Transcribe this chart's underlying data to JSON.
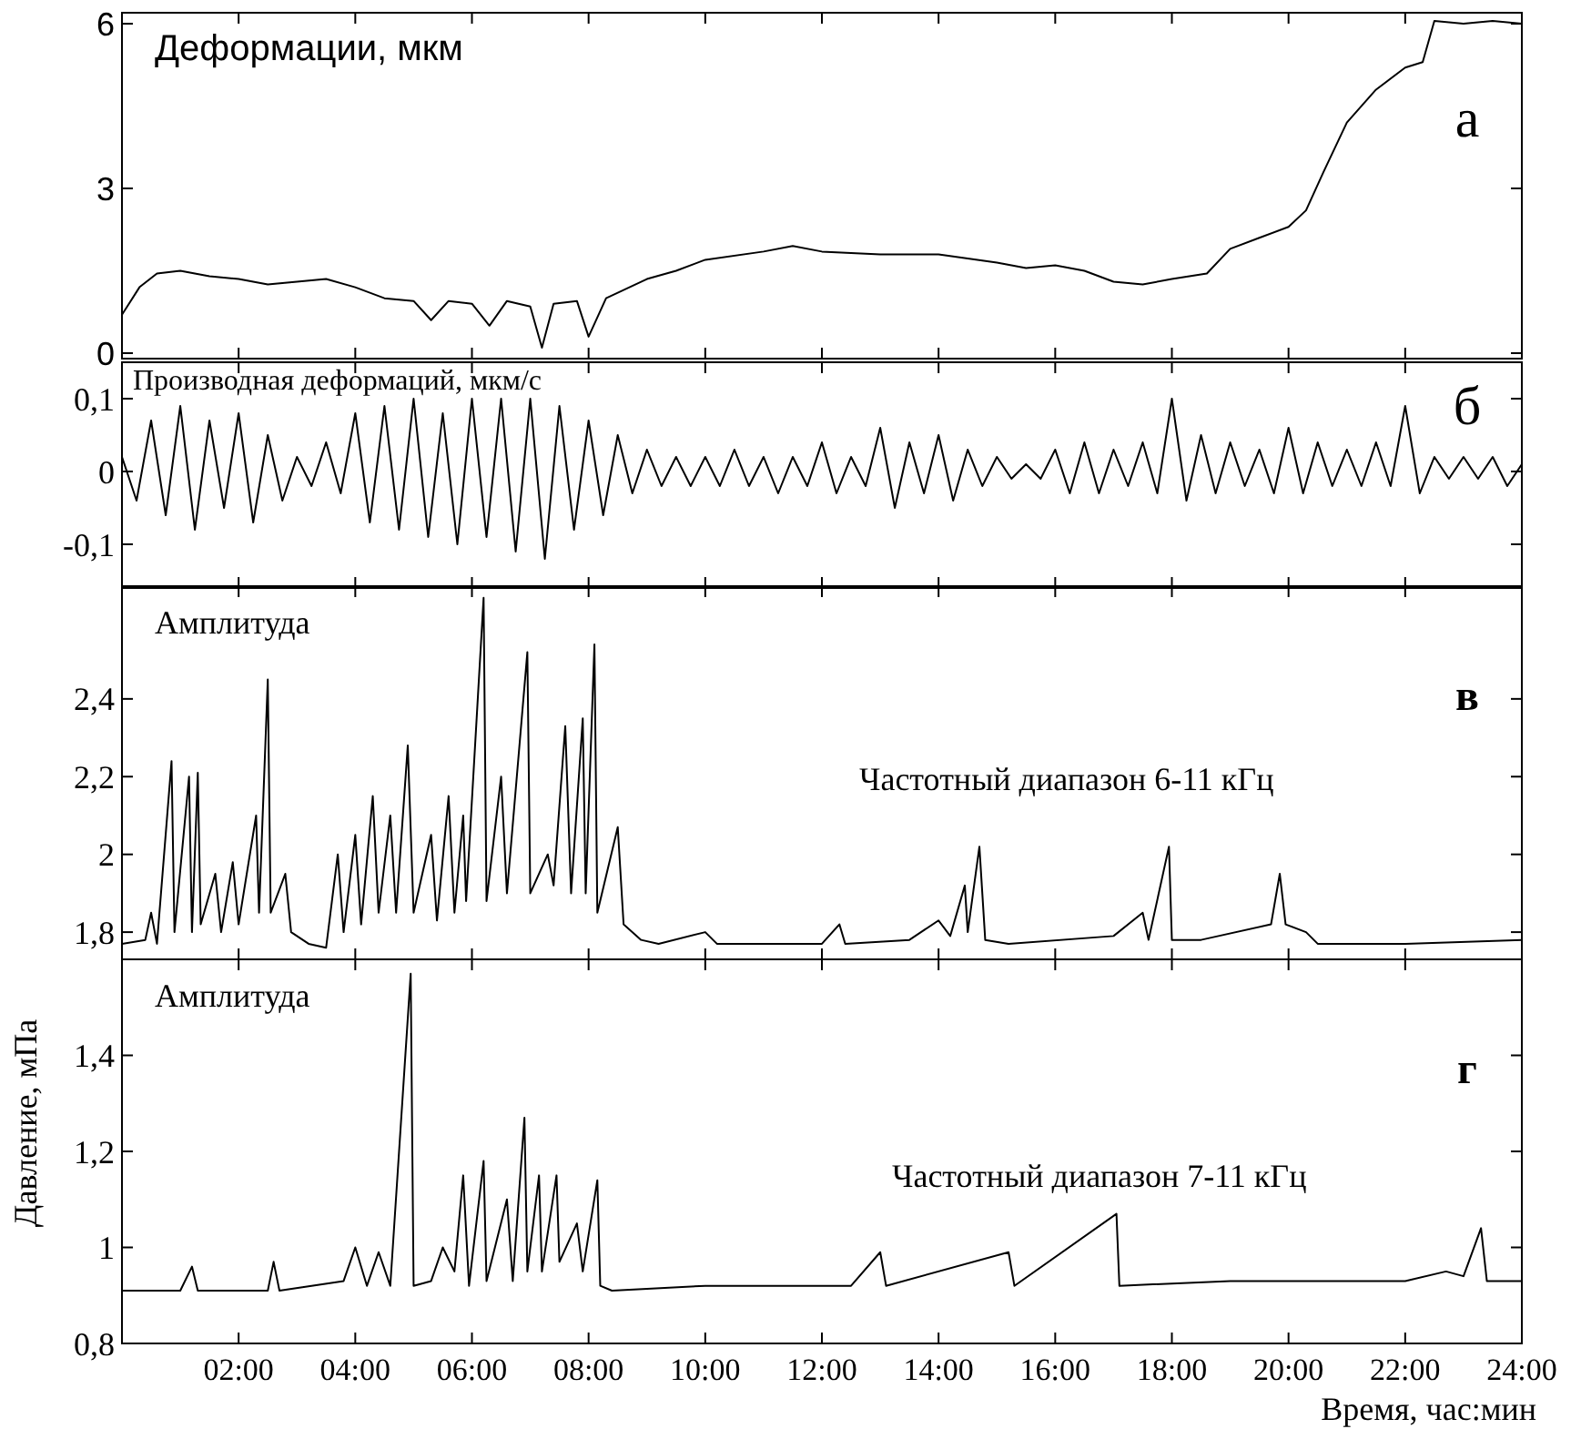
{
  "chart_data": [
    {
      "type": "line",
      "title": "Деформации, мкм",
      "annotations": [
        "а"
      ],
      "xlim": [
        0,
        24
      ],
      "xticks": [
        2,
        4,
        6,
        8,
        10,
        12,
        14,
        16,
        18,
        20,
        22,
        24
      ],
      "ylim": [
        -0.1,
        6.2
      ],
      "yticks": [
        0,
        3,
        6
      ],
      "tick_labels": "y",
      "x": [
        0,
        0.3,
        0.6,
        1,
        1.5,
        2,
        2.5,
        3,
        3.5,
        4,
        4.5,
        5,
        5.3,
        5.6,
        6,
        6.3,
        6.6,
        7,
        7.2,
        7.4,
        7.8,
        8,
        8.3,
        8.7,
        9,
        9.5,
        10,
        11,
        11.5,
        12,
        13,
        14,
        15,
        15.5,
        16,
        16.5,
        17,
        17.5,
        18,
        18.6,
        19,
        19.5,
        20,
        20.3,
        20.6,
        21,
        21.5,
        22,
        22.3,
        22.5,
        23,
        23.5,
        24
      ],
      "series": [
        {
          "color": "#000000",
          "values": [
            0.7,
            1.2,
            1.45,
            1.5,
            1.4,
            1.35,
            1.25,
            1.3,
            1.35,
            1.2,
            1.0,
            0.95,
            0.6,
            0.95,
            0.9,
            0.5,
            0.95,
            0.85,
            0.1,
            0.9,
            0.95,
            0.3,
            1.0,
            1.2,
            1.35,
            1.5,
            1.7,
            1.85,
            1.95,
            1.85,
            1.8,
            1.8,
            1.65,
            1.55,
            1.6,
            1.5,
            1.3,
            1.25,
            1.35,
            1.45,
            1.9,
            2.1,
            2.3,
            2.6,
            3.3,
            4.2,
            4.8,
            5.2,
            5.3,
            6.05,
            6.0,
            6.05,
            6.0
          ]
        }
      ]
    },
    {
      "type": "line",
      "title": "Производная деформаций, мкм/с",
      "annotations": [
        "б"
      ],
      "xlim": [
        0,
        24
      ],
      "xticks": [
        2,
        4,
        6,
        8,
        10,
        12,
        14,
        16,
        18,
        20,
        22,
        24
      ],
      "ylim": [
        -0.16,
        0.15
      ],
      "yticks": [
        {
          "value": 0.1,
          "label": "0,1"
        },
        0,
        {
          "value": -0.1,
          "label": "-0,1"
        }
      ],
      "tick_labels": "y",
      "x": [
        0,
        0.25,
        0.5,
        0.75,
        1,
        1.25,
        1.5,
        1.75,
        2,
        2.25,
        2.5,
        2.75,
        3,
        3.25,
        3.5,
        3.75,
        4,
        4.25,
        4.5,
        4.75,
        5,
        5.25,
        5.5,
        5.75,
        6,
        6.25,
        6.5,
        6.75,
        7,
        7.25,
        7.5,
        7.75,
        8,
        8.25,
        8.5,
        8.75,
        9,
        9.25,
        9.5,
        9.75,
        10,
        10.25,
        10.5,
        10.75,
        11,
        11.25,
        11.5,
        11.75,
        12,
        12.25,
        12.5,
        12.75,
        13,
        13.25,
        13.5,
        13.75,
        14,
        14.25,
        14.5,
        14.75,
        15,
        15.25,
        15.5,
        15.75,
        16,
        16.25,
        16.5,
        16.75,
        17,
        17.25,
        17.5,
        17.75,
        18,
        18.25,
        18.5,
        18.75,
        19,
        19.25,
        19.5,
        19.75,
        20,
        20.25,
        20.5,
        20.75,
        21,
        21.25,
        21.5,
        21.75,
        22,
        22.25,
        22.5,
        22.75,
        23,
        23.25,
        23.5,
        23.75,
        24
      ],
      "series": [
        {
          "color": "#000000",
          "values": [
            0.02,
            -0.04,
            0.07,
            -0.06,
            0.09,
            -0.08,
            0.07,
            -0.05,
            0.08,
            -0.07,
            0.05,
            -0.04,
            0.02,
            -0.02,
            0.04,
            -0.03,
            0.08,
            -0.07,
            0.09,
            -0.08,
            0.1,
            -0.09,
            0.08,
            -0.1,
            0.1,
            -0.09,
            0.1,
            -0.11,
            0.1,
            -0.12,
            0.09,
            -0.08,
            0.07,
            -0.06,
            0.05,
            -0.03,
            0.03,
            -0.02,
            0.02,
            -0.02,
            0.02,
            -0.02,
            0.03,
            -0.02,
            0.02,
            -0.03,
            0.02,
            -0.02,
            0.04,
            -0.03,
            0.02,
            -0.02,
            0.06,
            -0.05,
            0.04,
            -0.03,
            0.05,
            -0.04,
            0.03,
            -0.02,
            0.02,
            -0.01,
            0.01,
            -0.01,
            0.03,
            -0.03,
            0.04,
            -0.03,
            0.03,
            -0.02,
            0.04,
            -0.03,
            0.1,
            -0.04,
            0.05,
            -0.03,
            0.04,
            -0.02,
            0.03,
            -0.03,
            0.06,
            -0.03,
            0.04,
            -0.02,
            0.03,
            -0.02,
            0.04,
            -0.02,
            0.09,
            -0.03,
            0.02,
            -0.01,
            0.02,
            -0.01,
            0.02,
            -0.02,
            0.01
          ]
        }
      ]
    },
    {
      "type": "line",
      "title": "Амплитуда",
      "annotations": [
        "в",
        "Частотный диапазон  6-11 кГц"
      ],
      "xlim": [
        0,
        24
      ],
      "xticks": [
        2,
        4,
        6,
        8,
        10,
        12,
        14,
        16,
        18,
        20,
        22,
        24
      ],
      "ylim": [
        1.73,
        2.69
      ],
      "yticks": [
        {
          "value": 1.8,
          "label": "1,8"
        },
        2,
        {
          "value": 2.2,
          "label": "2,2"
        },
        {
          "value": 2.4,
          "label": "2,4"
        }
      ],
      "tick_labels": "y",
      "x": [
        0,
        0.4,
        0.5,
        0.6,
        0.85,
        0.9,
        1.15,
        1.2,
        1.3,
        1.35,
        1.6,
        1.7,
        1.9,
        2.0,
        2.3,
        2.35,
        2.5,
        2.55,
        2.8,
        2.9,
        3.2,
        3.5,
        3.7,
        3.8,
        4.0,
        4.1,
        4.3,
        4.4,
        4.6,
        4.7,
        4.9,
        5.0,
        5.3,
        5.4,
        5.6,
        5.7,
        5.85,
        5.9,
        6.2,
        6.25,
        6.5,
        6.6,
        6.95,
        7.0,
        7.3,
        7.4,
        7.6,
        7.7,
        7.9,
        7.95,
        8.1,
        8.15,
        8.5,
        8.6,
        8.9,
        9.2,
        10.0,
        10.2,
        12.0,
        12.3,
        12.4,
        13.5,
        14.0,
        14.2,
        14.45,
        14.5,
        14.7,
        14.8,
        15.2,
        17.0,
        17.5,
        17.6,
        17.95,
        18.0,
        18.5,
        19.7,
        19.85,
        19.95,
        20.3,
        20.5,
        22.0,
        24
      ],
      "series": [
        {
          "color": "#000000",
          "values": [
            1.77,
            1.78,
            1.85,
            1.77,
            2.24,
            1.8,
            2.2,
            1.8,
            2.21,
            1.82,
            1.95,
            1.8,
            1.98,
            1.82,
            2.1,
            1.85,
            2.45,
            1.85,
            1.95,
            1.8,
            1.77,
            1.76,
            2.0,
            1.8,
            2.05,
            1.82,
            2.15,
            1.85,
            2.1,
            1.85,
            2.28,
            1.85,
            2.05,
            1.83,
            2.15,
            1.85,
            2.1,
            1.88,
            2.66,
            1.88,
            2.2,
            1.9,
            2.52,
            1.9,
            2.0,
            1.92,
            2.33,
            1.9,
            2.35,
            1.9,
            2.54,
            1.85,
            2.07,
            1.82,
            1.78,
            1.77,
            1.8,
            1.77,
            1.77,
            1.82,
            1.77,
            1.78,
            1.83,
            1.79,
            1.92,
            1.8,
            2.02,
            1.78,
            1.77,
            1.79,
            1.85,
            1.78,
            2.02,
            1.78,
            1.78,
            1.82,
            1.95,
            1.82,
            1.8,
            1.77,
            1.77,
            1.78
          ]
        }
      ]
    },
    {
      "type": "line",
      "title": "Амплитуда",
      "xlabel": "Время, час:мин",
      "ylabel": "Давление, мПа",
      "annotations": [
        "г",
        "Частотный диапазон 7-11 кГц"
      ],
      "xlim": [
        0,
        24
      ],
      "xticks": [
        {
          "value": 2,
          "label": "02:00"
        },
        {
          "value": 4,
          "label": "04:00"
        },
        {
          "value": 6,
          "label": "06:00"
        },
        {
          "value": 8,
          "label": "08:00"
        },
        {
          "value": 10,
          "label": "10:00"
        },
        {
          "value": 12,
          "label": "12:00"
        },
        {
          "value": 14,
          "label": "14:00"
        },
        {
          "value": 16,
          "label": "16:00"
        },
        {
          "value": 18,
          "label": "18:00"
        },
        {
          "value": 20,
          "label": "20:00"
        },
        {
          "value": 22,
          "label": "22:00"
        },
        {
          "value": 24,
          "label": "24:00"
        }
      ],
      "ylim": [
        0.8,
        1.6
      ],
      "yticks": [
        {
          "value": 0.8,
          "label": "0,8"
        },
        1,
        {
          "value": 1.2,
          "label": "1,2"
        },
        {
          "value": 1.4,
          "label": "1,4"
        }
      ],
      "x": [
        0,
        1,
        1.2,
        1.3,
        2.5,
        2.6,
        2.7,
        3.8,
        4.0,
        4.2,
        4.4,
        4.6,
        4.95,
        5.0,
        5.3,
        5.5,
        5.7,
        5.85,
        5.95,
        6.2,
        6.25,
        6.6,
        6.7,
        6.9,
        6.95,
        7.15,
        7.2,
        7.45,
        7.5,
        7.8,
        7.9,
        8.15,
        8.2,
        8.4,
        10.0,
        11.0,
        12.5,
        13.0,
        13.1,
        15.2,
        15.3,
        17.05,
        17.1,
        19.0,
        20.0,
        22.0,
        22.7,
        23.0,
        23.3,
        23.4,
        24
      ],
      "series": [
        {
          "color": "#000000",
          "values": [
            0.91,
            0.91,
            0.96,
            0.91,
            0.91,
            0.97,
            0.91,
            0.93,
            1.0,
            0.92,
            0.99,
            0.92,
            1.57,
            0.92,
            0.93,
            1.0,
            0.95,
            1.15,
            0.92,
            1.18,
            0.93,
            1.1,
            0.93,
            1.27,
            0.95,
            1.15,
            0.95,
            1.15,
            0.97,
            1.05,
            0.95,
            1.14,
            0.92,
            0.91,
            0.92,
            0.92,
            0.92,
            0.99,
            0.92,
            0.99,
            0.92,
            1.07,
            0.92,
            0.93,
            0.93,
            0.93,
            0.95,
            0.94,
            1.04,
            0.93,
            0.93
          ]
        }
      ]
    }
  ]
}
